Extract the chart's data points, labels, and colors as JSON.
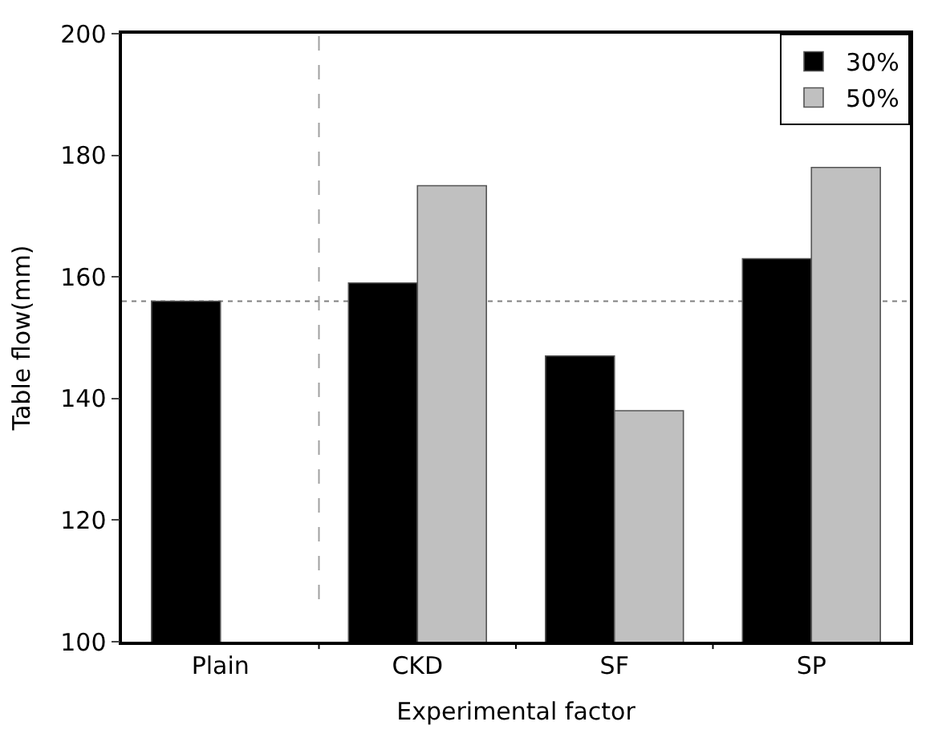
{
  "chart_data": {
    "type": "bar",
    "xlabel": "Experimental factor",
    "ylabel": "Table flow(mm)",
    "categories": [
      "Plain",
      "CKD",
      "SF",
      "SP"
    ],
    "series": [
      {
        "name": "30%",
        "color": "#000000",
        "values": [
          156,
          159,
          147,
          163
        ]
      },
      {
        "name": "50%",
        "color": "#c0c0c0",
        "values": [
          null,
          175,
          138,
          178
        ]
      }
    ],
    "ylim": [
      100,
      200
    ],
    "yticks": [
      100,
      120,
      140,
      160,
      180,
      200
    ],
    "ref_lines": [
      {
        "axis": "y",
        "value": 156,
        "color": "#808080",
        "line_style": "dotted"
      }
    ],
    "grid": false,
    "legend": "top right"
  }
}
